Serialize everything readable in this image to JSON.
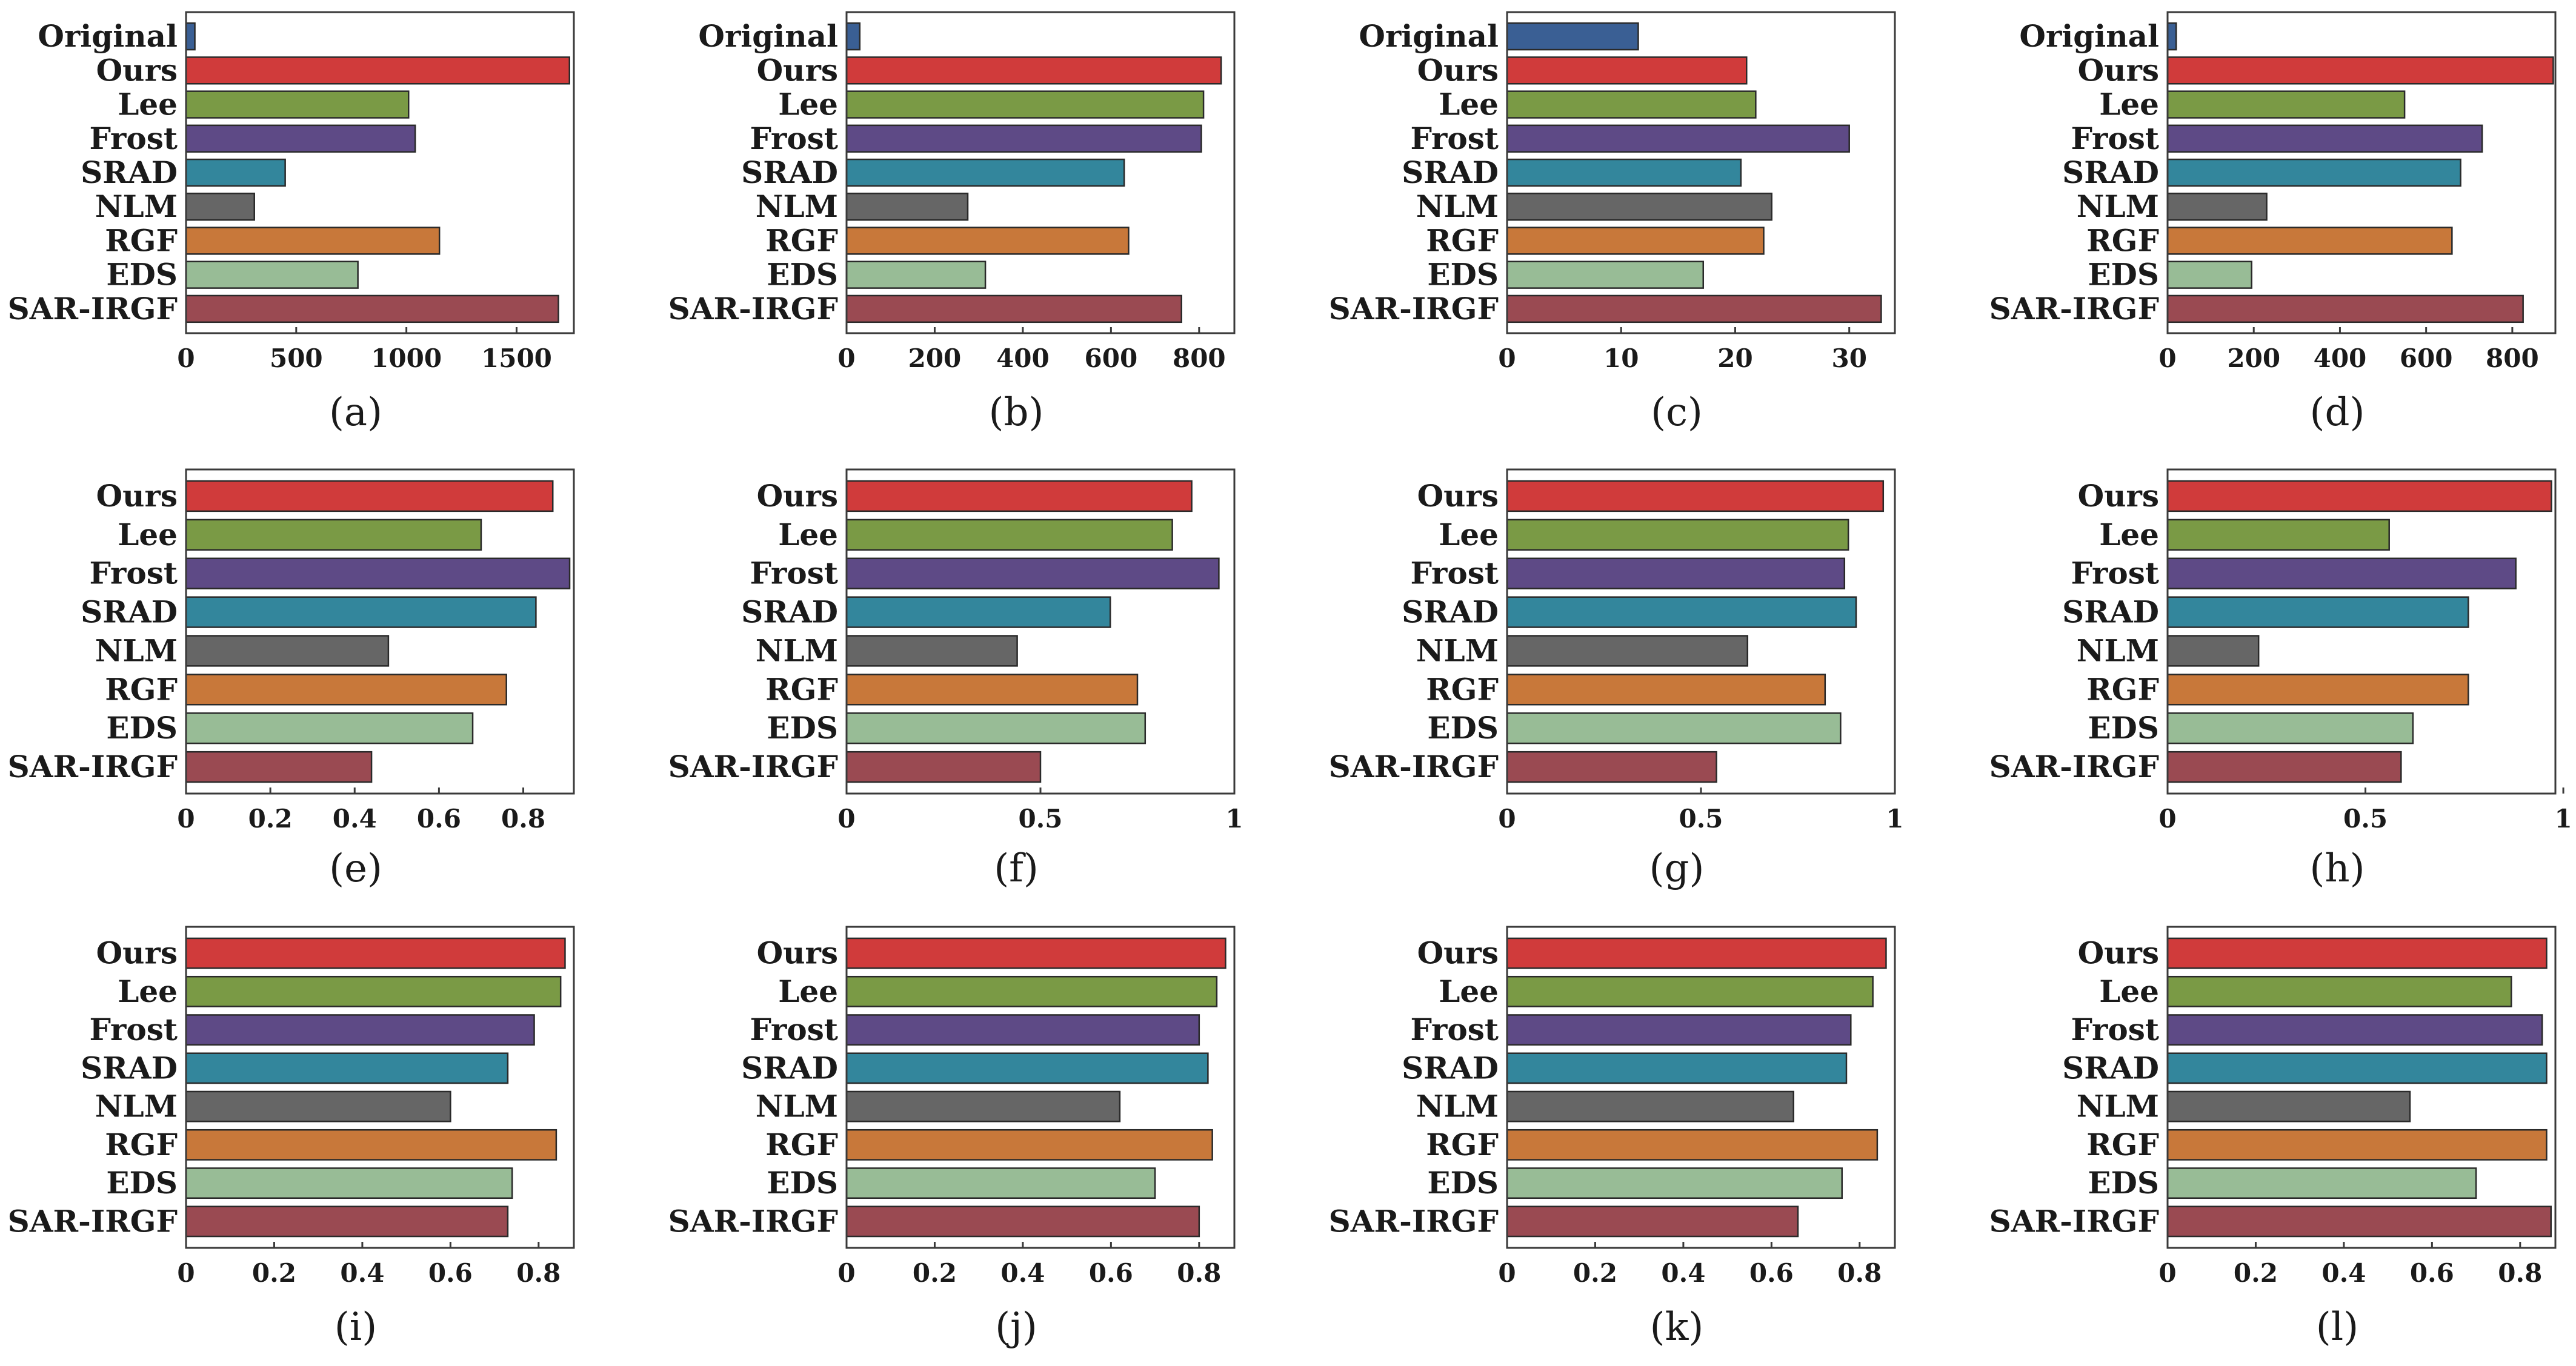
{
  "colors": {
    "Original": "#3a5f94",
    "Ours": "#d03b3b",
    "Lee": "#7a9a45",
    "Frost": "#5e4a86",
    "SRAD": "#33869c",
    "NLM": "#666666",
    "RGF": "#c8783a",
    "EDS": "#98bc96",
    "SAR-IRGF": "#9a4a52"
  },
  "chart_data": [
    {
      "type": "bar",
      "orientation": "horizontal",
      "label": "(a)",
      "categories": [
        "Original",
        "Ours",
        "Lee",
        "Frost",
        "SRAD",
        "NLM",
        "RGF",
        "EDS",
        "SAR-IRGF"
      ],
      "values": [
        40,
        1740,
        1010,
        1040,
        450,
        310,
        1150,
        780,
        1690
      ],
      "xlim": [
        0,
        1760
      ],
      "xticks": [
        0,
        500,
        1000,
        1500
      ],
      "xtick_labels": [
        "0",
        "500",
        "1000",
        "1500"
      ]
    },
    {
      "type": "bar",
      "orientation": "horizontal",
      "label": "(b)",
      "categories": [
        "Original",
        "Ours",
        "Lee",
        "Frost",
        "SRAD",
        "NLM",
        "RGF",
        "EDS",
        "SAR-IRGF"
      ],
      "values": [
        30,
        850,
        810,
        805,
        630,
        275,
        640,
        315,
        760
      ],
      "xlim": [
        0,
        880
      ],
      "xticks": [
        0,
        200,
        400,
        600,
        800
      ],
      "xtick_labels": [
        "0",
        "200",
        "400",
        "600",
        "800"
      ]
    },
    {
      "type": "bar",
      "orientation": "horizontal",
      "label": "(c)",
      "categories": [
        "Original",
        "Ours",
        "Lee",
        "Frost",
        "SRAD",
        "NLM",
        "RGF",
        "EDS",
        "SAR-IRGF"
      ],
      "values": [
        11.5,
        21,
        21.8,
        30,
        20.5,
        23.2,
        22.5,
        17.2,
        32.8
      ],
      "xlim": [
        0,
        34
      ],
      "xticks": [
        0,
        10,
        20,
        30
      ],
      "xtick_labels": [
        "0",
        "10",
        "20",
        "30"
      ]
    },
    {
      "type": "bar",
      "orientation": "horizontal",
      "label": "(d)",
      "categories": [
        "Original",
        "Ours",
        "Lee",
        "Frost",
        "SRAD",
        "NLM",
        "RGF",
        "EDS",
        "SAR-IRGF"
      ],
      "values": [
        20,
        895,
        550,
        730,
        680,
        230,
        660,
        195,
        825
      ],
      "xlim": [
        0,
        900
      ],
      "xticks": [
        0,
        200,
        400,
        600,
        800
      ],
      "xtick_labels": [
        "0",
        "200",
        "400",
        "600",
        "800"
      ]
    },
    {
      "type": "bar",
      "orientation": "horizontal",
      "label": "(e)",
      "categories": [
        "Ours",
        "Lee",
        "Frost",
        "SRAD",
        "NLM",
        "RGF",
        "EDS",
        "SAR-IRGF"
      ],
      "values": [
        0.87,
        0.7,
        0.91,
        0.83,
        0.48,
        0.76,
        0.68,
        0.44
      ],
      "xlim": [
        0,
        0.92
      ],
      "xticks": [
        0,
        0.2,
        0.4,
        0.6,
        0.8
      ],
      "xtick_labels": [
        "0",
        "0.2",
        "0.4",
        "0.6",
        "0.8"
      ]
    },
    {
      "type": "bar",
      "orientation": "horizontal",
      "label": "(f)",
      "categories": [
        "Ours",
        "Lee",
        "Frost",
        "SRAD",
        "NLM",
        "RGF",
        "EDS",
        "SAR-IRGF"
      ],
      "values": [
        0.89,
        0.84,
        0.96,
        0.68,
        0.44,
        0.75,
        0.77,
        0.5
      ],
      "xlim": [
        0,
        1.0
      ],
      "xticks": [
        0,
        0.5,
        1
      ],
      "xtick_labels": [
        "0",
        "0.5",
        "1"
      ]
    },
    {
      "type": "bar",
      "orientation": "horizontal",
      "label": "(g)",
      "categories": [
        "Ours",
        "Lee",
        "Frost",
        "SRAD",
        "NLM",
        "RGF",
        "EDS",
        "SAR-IRGF"
      ],
      "values": [
        0.97,
        0.88,
        0.87,
        0.9,
        0.62,
        0.82,
        0.86,
        0.54
      ],
      "xlim": [
        0,
        1.0
      ],
      "xticks": [
        0,
        0.5,
        1
      ],
      "xtick_labels": [
        "0",
        "0.5",
        "1"
      ]
    },
    {
      "type": "bar",
      "orientation": "horizontal",
      "label": "(h)",
      "categories": [
        "Ours",
        "Lee",
        "Frost",
        "SRAD",
        "NLM",
        "RGF",
        "EDS",
        "SAR-IRGF"
      ],
      "values": [
        0.97,
        0.56,
        0.88,
        0.76,
        0.23,
        0.76,
        0.62,
        0.59
      ],
      "xlim": [
        0,
        0.98
      ],
      "xticks": [
        0,
        0.5,
        1
      ],
      "xtick_labels": [
        "0",
        "0.5",
        "1"
      ]
    },
    {
      "type": "bar",
      "orientation": "horizontal",
      "label": "(i)",
      "categories": [
        "Ours",
        "Lee",
        "Frost",
        "SRAD",
        "NLM",
        "RGF",
        "EDS",
        "SAR-IRGF"
      ],
      "values": [
        0.86,
        0.85,
        0.79,
        0.73,
        0.6,
        0.84,
        0.74,
        0.73
      ],
      "xlim": [
        0,
        0.88
      ],
      "xticks": [
        0,
        0.2,
        0.4,
        0.6,
        0.8
      ],
      "xtick_labels": [
        "0",
        "0.2",
        "0.4",
        "0.6",
        "0.8"
      ]
    },
    {
      "type": "bar",
      "orientation": "horizontal",
      "label": "(j)",
      "categories": [
        "Ours",
        "Lee",
        "Frost",
        "SRAD",
        "NLM",
        "RGF",
        "EDS",
        "SAR-IRGF"
      ],
      "values": [
        0.86,
        0.84,
        0.8,
        0.82,
        0.62,
        0.83,
        0.7,
        0.8
      ],
      "xlim": [
        0,
        0.88
      ],
      "xticks": [
        0,
        0.2,
        0.4,
        0.6,
        0.8
      ],
      "xtick_labels": [
        "0",
        "0.2",
        "0.4",
        "0.6",
        "0.8"
      ]
    },
    {
      "type": "bar",
      "orientation": "horizontal",
      "label": "(k)",
      "categories": [
        "Ours",
        "Lee",
        "Frost",
        "SRAD",
        "NLM",
        "RGF",
        "EDS",
        "SAR-IRGF"
      ],
      "values": [
        0.86,
        0.83,
        0.78,
        0.77,
        0.65,
        0.84,
        0.76,
        0.66
      ],
      "xlim": [
        0,
        0.88
      ],
      "xticks": [
        0,
        0.2,
        0.4,
        0.6,
        0.8
      ],
      "xtick_labels": [
        "0",
        "0.2",
        "0.4",
        "0.6",
        "0.8"
      ]
    },
    {
      "type": "bar",
      "orientation": "horizontal",
      "label": "(l)",
      "categories": [
        "Ours",
        "Lee",
        "Frost",
        "SRAD",
        "NLM",
        "RGF",
        "EDS",
        "SAR-IRGF"
      ],
      "values": [
        0.86,
        0.78,
        0.85,
        0.86,
        0.55,
        0.86,
        0.7,
        0.87
      ],
      "xlim": [
        0,
        0.88
      ],
      "xticks": [
        0,
        0.2,
        0.4,
        0.6,
        0.8
      ],
      "xtick_labels": [
        "0",
        "0.2",
        "0.4",
        "0.6",
        "0.8"
      ]
    }
  ]
}
